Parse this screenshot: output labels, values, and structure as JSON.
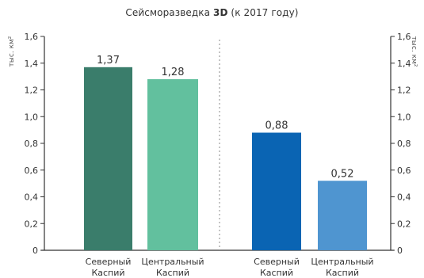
{
  "chart_data": {
    "type": "bar",
    "title_prefix": "Сейсморазведка ",
    "title_bold": "3D",
    "title_suffix": " (к 2017 году)",
    "ylabel_left": "тыс. км²",
    "ylabel_right": "тыс. км²",
    "ylim": [
      0,
      1.6
    ],
    "yticks": [
      "0",
      "0,2",
      "0,4",
      "0,6",
      "0,8",
      "1,0",
      "1,2",
      "1,4",
      "1,6"
    ],
    "grid": false,
    "bars": [
      {
        "label_line1": "Северный",
        "label_line2": "Каспий",
        "value": 1.37,
        "value_label": "1,37",
        "color": "#3a7d6b"
      },
      {
        "label_line1": "Центральный",
        "label_line2": "Каспий",
        "value": 1.28,
        "value_label": "1,28",
        "color": "#62c09e"
      },
      {
        "label_line1": "Северный",
        "label_line2": "Каспий",
        "value": 0.88,
        "value_label": "0,88",
        "color": "#0a64b3"
      },
      {
        "label_line1": "Центральный",
        "label_line2": "Каспий",
        "value": 0.52,
        "value_label": "0,52",
        "color": "#4f95d0"
      }
    ]
  }
}
